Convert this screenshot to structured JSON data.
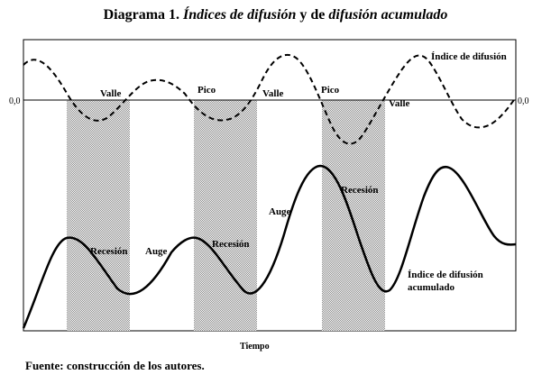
{
  "title": {
    "prefix": "Diagrama 1. ",
    "part1": "Índices de difusión",
    "mid": " y de ",
    "part2": "difusión acumulado"
  },
  "axis": {
    "zero_left": "0,0",
    "zero_right": "0,0",
    "x_label": "Tiempo"
  },
  "labels": {
    "valle_1": "Valle",
    "pico_1": "Pico",
    "valle_2": "Valle",
    "pico_2": "Pico",
    "valle_3": "Valle",
    "indice_difusion": "Índice de difusión",
    "recesion_1": "Recesión",
    "auge_1": "Auge",
    "recesion_2": "Recesión",
    "auge_2": "Auge",
    "recesion_3": "Recesión",
    "acumulado_line1": "Índice de difusión",
    "acumulado_line2": "acumulado"
  },
  "source": "Fuente: construcción de los autores.",
  "colors": {
    "line": "#000000",
    "shade": "#b8b8b8"
  }
}
